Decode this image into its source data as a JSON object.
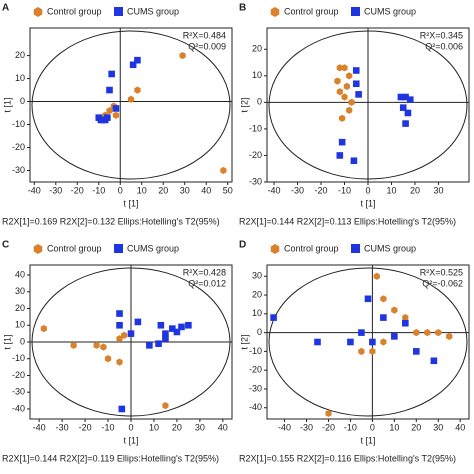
{
  "chart_data": [
    {
      "type": "scatter",
      "panel": "A",
      "xlabel": "t [1]",
      "ylabel": "t [1]",
      "stats": [
        "R²X=0.484",
        "Q²=0.009"
      ],
      "footer": "R2X[1]=0.169 R2X[2]=0.132 Ellips:Hotelling's T2(95%)",
      "xlim": [
        -42,
        52
      ],
      "xticks": [
        -40,
        -30,
        -20,
        -10,
        0,
        10,
        20,
        30,
        40,
        50
      ],
      "ylim": [
        -35,
        32
      ],
      "yticks": [
        -30,
        -20,
        -10,
        0,
        10,
        20
      ],
      "series": [
        {
          "name": "Control group",
          "color": "#d9822b",
          "x": [
            29,
            48,
            8,
            5,
            -5,
            -3,
            -7,
            -2
          ],
          "values": [
            20,
            -30,
            5,
            1,
            -4,
            -2,
            -6,
            -6
          ]
        },
        {
          "name": "CUMS group",
          "color": "#1f35e0",
          "x": [
            -10,
            -9,
            -8,
            -7,
            -6,
            -5,
            -4,
            6,
            8,
            -2
          ],
          "values": [
            -7,
            -8,
            -8,
            -8,
            -7,
            5,
            12,
            16,
            18,
            -3
          ]
        }
      ]
    },
    {
      "type": "scatter",
      "panel": "B",
      "xlabel": "t [1]",
      "ylabel": "t [2]",
      "stats": [
        "R²X=0.345",
        "Q²=0.006"
      ],
      "footer": "R2X[1]=0.144 R2X[2]=0.113 Ellips:Hotelling's T2(95%)",
      "xlim": [
        -43,
        43
      ],
      "xticks": [
        -40,
        -30,
        -20,
        -10,
        0,
        10,
        20,
        30
      ],
      "ylim": [
        -30,
        28
      ],
      "yticks": [
        -30,
        -20,
        -10,
        0,
        10,
        20
      ],
      "series": [
        {
          "name": "Control group",
          "color": "#d9822b",
          "x": [
            -12,
            -10,
            -8,
            -13,
            -9,
            -12,
            -10,
            -7,
            -11,
            -8
          ],
          "values": [
            13,
            13,
            10,
            8,
            6,
            4,
            2,
            0,
            -6,
            -3
          ]
        },
        {
          "name": "CUMS group",
          "color": "#1f35e0",
          "x": [
            -5,
            -5,
            -4,
            14,
            16,
            18,
            15,
            17,
            16,
            -11,
            -12,
            -6
          ],
          "values": [
            12,
            7,
            3,
            2,
            2,
            1,
            -2,
            -4,
            -8,
            -15,
            -20,
            -22
          ]
        }
      ]
    },
    {
      "type": "scatter",
      "panel": "C",
      "xlabel": "t [1]",
      "ylabel": "t [1]",
      "stats": [
        "R²X=0.428",
        "Q²=0.012"
      ],
      "footer": "R2X[1]=0.144 R2X[2]=0.119 Ellips:Hotelling's T2(95%)",
      "xlim": [
        -44,
        44
      ],
      "xticks": [
        -40,
        -30,
        -20,
        -10,
        0,
        10,
        20,
        30,
        40
      ],
      "ylim": [
        -46,
        46
      ],
      "yticks": [
        -40,
        -30,
        -20,
        -10,
        0,
        10,
        20,
        30,
        40
      ],
      "series": [
        {
          "name": "Control group",
          "color": "#d9822b",
          "x": [
            -38,
            -25,
            -15,
            -12,
            -5,
            -3,
            -10,
            -5,
            15
          ],
          "values": [
            8,
            -2,
            -2,
            -3,
            2,
            4,
            -10,
            -12,
            -38
          ]
        },
        {
          "name": "CUMS group",
          "color": "#1f35e0",
          "x": [
            -5,
            -5,
            3,
            0,
            8,
            12,
            15,
            18,
            20,
            22,
            25,
            13,
            15,
            -4
          ],
          "values": [
            17,
            10,
            12,
            5,
            -2,
            -1,
            5,
            8,
            6,
            9,
            10,
            10,
            2,
            -40
          ]
        }
      ]
    },
    {
      "type": "scatter",
      "panel": "D",
      "xlabel": "t [1]",
      "ylabel": "t [2]",
      "stats": [
        "R²X=0.525",
        "Q²=-0.062"
      ],
      "footer": "R2X[1]=0.155 R2X[2]=0.116 Ellips:Hotelling's T2(95%)",
      "xlim": [
        -48,
        44
      ],
      "xticks": [
        -40,
        -30,
        -20,
        -10,
        0,
        10,
        20,
        30,
        40
      ],
      "ylim": [
        -46,
        36
      ],
      "yticks": [
        -40,
        -30,
        -20,
        -10,
        0,
        10,
        20,
        30
      ],
      "series": [
        {
          "name": "Control group",
          "color": "#d9822b",
          "x": [
            2,
            5,
            10,
            15,
            20,
            25,
            30,
            35,
            -20,
            -5,
            0,
            5
          ],
          "values": [
            30,
            18,
            12,
            8,
            0,
            0,
            0,
            -2,
            -43,
            -10,
            -10,
            -5
          ]
        },
        {
          "name": "CUMS group",
          "color": "#1f35e0",
          "x": [
            -45,
            -2,
            -25,
            -10,
            0,
            -5,
            10,
            20,
            28,
            15,
            5
          ],
          "values": [
            8,
            18,
            -5,
            -5,
            -5,
            0,
            -2,
            -10,
            -15,
            5,
            8
          ]
        }
      ]
    }
  ]
}
